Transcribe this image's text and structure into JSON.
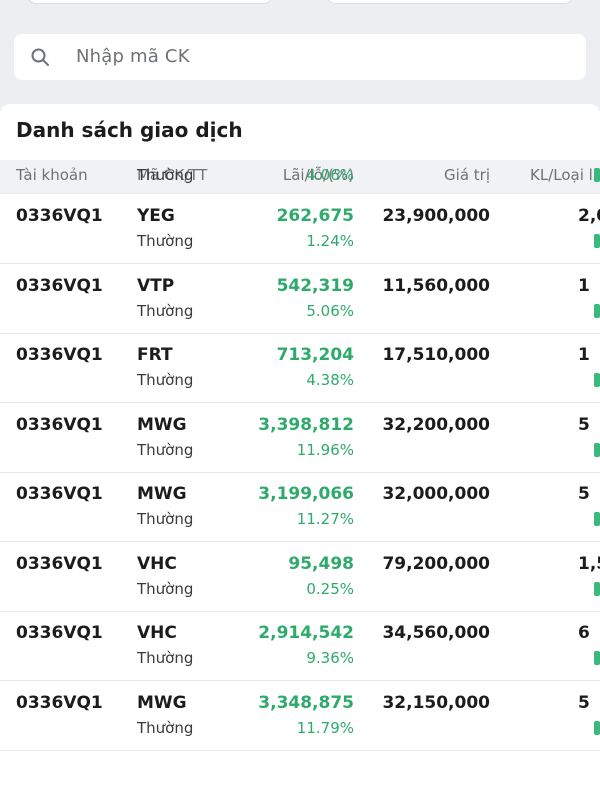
{
  "search": {
    "placeholder": "Nhập mã CK"
  },
  "list": {
    "title": "Danh sách giao dịch",
    "columns": [
      "Tài khoản",
      "Mã CK/TT",
      "Lãi/lỗ/(%)",
      "Giá trị",
      "KL/Loại l"
    ],
    "partial_row": {
      "type": "Thường",
      "pct": "4.06%"
    },
    "rows": [
      {
        "account": "0336VQ1",
        "code": "YEG",
        "type": "Thường",
        "pl": "262,675",
        "pct": "1.24%",
        "value": "23,900,000",
        "qty": "2,0"
      },
      {
        "account": "0336VQ1",
        "code": "VTP",
        "type": "Thường",
        "pl": "542,319",
        "pct": "5.06%",
        "value": "11,560,000",
        "qty": "1"
      },
      {
        "account": "0336VQ1",
        "code": "FRT",
        "type": "Thường",
        "pl": "713,204",
        "pct": "4.38%",
        "value": "17,510,000",
        "qty": "1"
      },
      {
        "account": "0336VQ1",
        "code": "MWG",
        "type": "Thường",
        "pl": "3,398,812",
        "pct": "11.96%",
        "value": "32,200,000",
        "qty": "5"
      },
      {
        "account": "0336VQ1",
        "code": "MWG",
        "type": "Thường",
        "pl": "3,199,066",
        "pct": "11.27%",
        "value": "32,000,000",
        "qty": "5"
      },
      {
        "account": "0336VQ1",
        "code": "VHC",
        "type": "Thường",
        "pl": "95,498",
        "pct": "0.25%",
        "value": "79,200,000",
        "qty": "1,5"
      },
      {
        "account": "0336VQ1",
        "code": "VHC",
        "type": "Thường",
        "pl": "2,914,542",
        "pct": "9.36%",
        "value": "34,560,000",
        "qty": "6"
      },
      {
        "account": "0336VQ1",
        "code": "MWG",
        "type": "Thường",
        "pl": "3,348,875",
        "pct": "11.79%",
        "value": "32,150,000",
        "qty": "5"
      }
    ]
  },
  "colors": {
    "profit": "#2eaa6a",
    "accent_mark": "#3bb97a",
    "background": "#eceef2"
  },
  "icons": {
    "search": "search-icon"
  }
}
